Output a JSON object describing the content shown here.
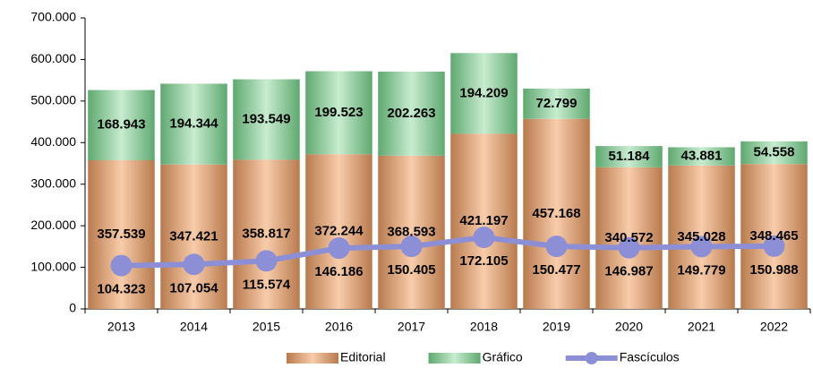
{
  "chart_data": {
    "type": "bar",
    "stacked": true,
    "categories": [
      "2013",
      "2014",
      "2015",
      "2016",
      "2017",
      "2018",
      "2019",
      "2020",
      "2021",
      "2022"
    ],
    "series": [
      {
        "name": "Editorial",
        "type": "bar",
        "color": "#e8a878",
        "values": [
          357539,
          347421,
          358817,
          372244,
          368593,
          421197,
          457168,
          340572,
          345028,
          348465
        ],
        "value_labels": [
          "357.539",
          "347.421",
          "358.817",
          "372.244",
          "368.593",
          "421.197",
          "457.168",
          "340.572",
          "345.028",
          "348.465"
        ]
      },
      {
        "name": "Gráfico",
        "type": "bar",
        "color": "#8fcf9c",
        "values": [
          168943,
          194344,
          193549,
          199523,
          202263,
          194209,
          72799,
          51184,
          43881,
          54558
        ],
        "value_labels": [
          "168.943",
          "194.344",
          "193.549",
          "199.523",
          "202.263",
          "194.209",
          "72.799",
          "51.184",
          "43.881",
          "54.558"
        ]
      },
      {
        "name": "Fascículos",
        "type": "line",
        "color": "#8c8fd6",
        "values": [
          104323,
          107054,
          115574,
          146186,
          150405,
          172105,
          150477,
          146987,
          149779,
          150988
        ],
        "value_labels": [
          "104.323",
          "107.054",
          "115.574",
          "146.186",
          "150.405",
          "172.105",
          "150.477",
          "146.987",
          "149.779",
          "150.988"
        ]
      }
    ],
    "ylim": [
      0,
      700000
    ],
    "yticks": [
      0,
      {
        "value": 100000,
        "label": "100.000"
      },
      {
        "value": 200000,
        "label": "200.000"
      },
      {
        "value": 300000,
        "label": "300.000"
      },
      {
        "value": 400000,
        "label": "400.000"
      },
      {
        "value": 500000,
        "label": "500.000"
      },
      {
        "value": 600000,
        "label": "600.000"
      },
      {
        "value": 700000,
        "label": "700.000"
      }
    ],
    "legend": "bottom"
  }
}
